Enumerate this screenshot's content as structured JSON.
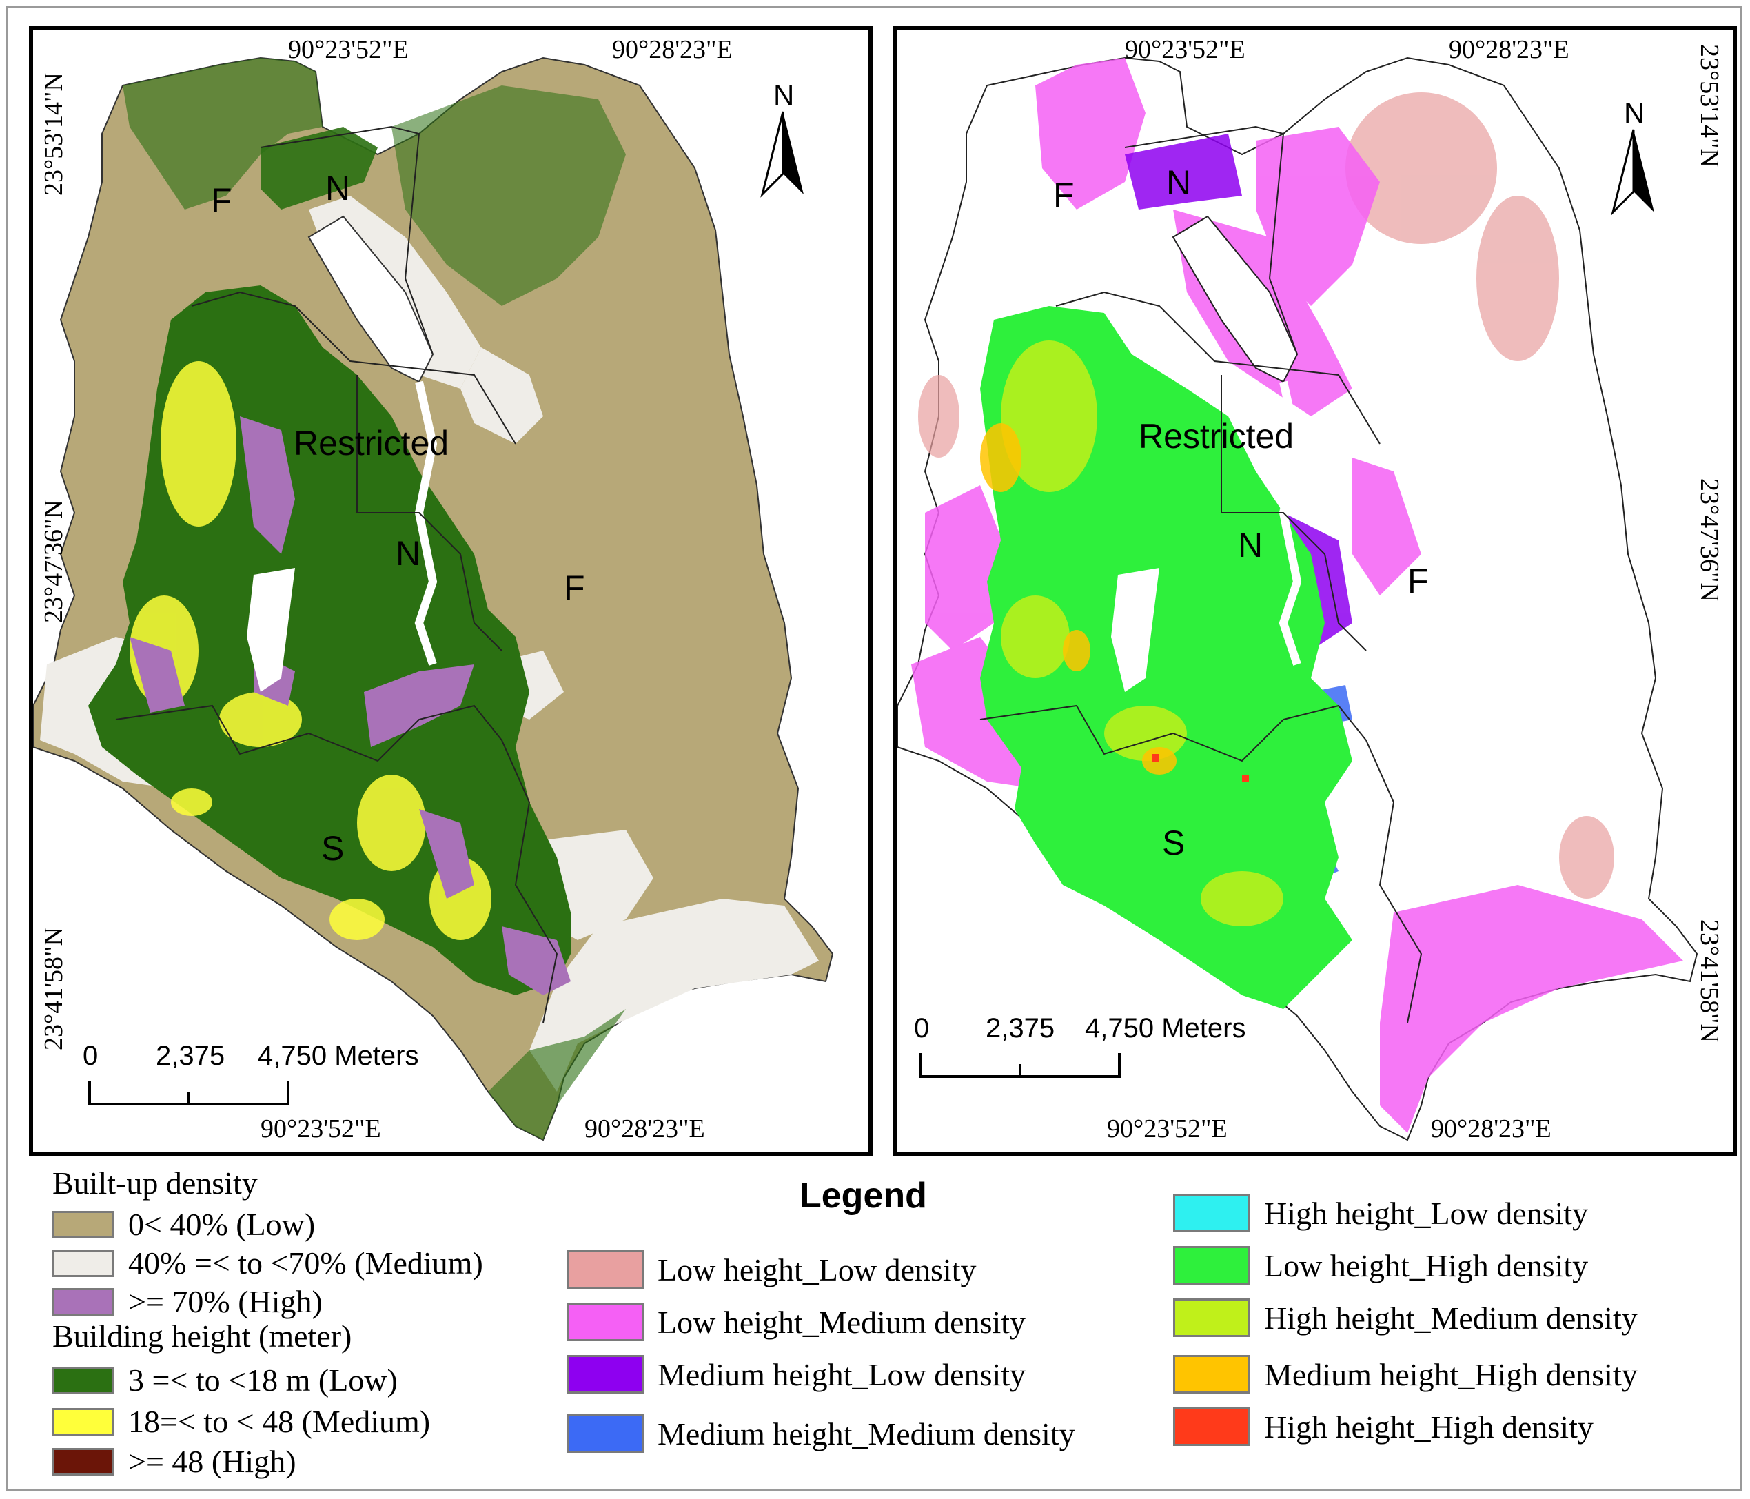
{
  "colors": {
    "low_density": "#b7a878",
    "medium_density": "#efede8",
    "high_density": "#a972b8",
    "height_low": "#2b7012",
    "height_medium": "#ffff3a",
    "height_high": "#6b1508",
    "lh_ld": "#e8a0a0",
    "lh_md": "#f560f5",
    "mh_ld": "#8e00f0",
    "mh_md": "#3c6af5",
    "hh_ld": "#2ef0f0",
    "lh_hd": "#2ef03c",
    "hh_md": "#c0f01a",
    "mh_hd": "#ffc400",
    "hh_hd": "#ff3a1a"
  },
  "left_map": {
    "top_lon_1": "90°23'52\"E",
    "top_lon_2": "90°28'23\"E",
    "bottom_lon_1": "90°23'52\"E",
    "bottom_lon_2": "90°28'23\"E",
    "lat_1": "23°53'14\"N",
    "lat_2": "23°47'36\"N",
    "lat_3": "23°41'58\"N",
    "labels": {
      "f1": "F",
      "n1": "N",
      "restricted": "Restricted",
      "n2": "N",
      "f2": "F",
      "s": "S"
    },
    "north_arrow": "N",
    "scale": {
      "t0": "0",
      "t1": "2,375",
      "t2": "4,750 Meters"
    }
  },
  "right_map": {
    "top_lon_1": "90°23'52\"E",
    "top_lon_2": "90°28'23\"E",
    "bottom_lon_1": "90°23'52\"E",
    "bottom_lon_2": "90°28'23\"E",
    "lat_1": "23°53'14\"N",
    "lat_2": "23°47'36\"N",
    "lat_3": "23°41'58\"N",
    "labels": {
      "f1": "F",
      "n1": "N",
      "restricted": "Restricted",
      "n2": "N",
      "f2": "F",
      "s": "S"
    },
    "north_arrow": "N",
    "scale": {
      "t0": "0",
      "t1": "2,375",
      "t2": "4,750 Meters"
    }
  },
  "legend": {
    "title": "Legend",
    "builtup_heading": "Built-up density",
    "builtup_items": [
      "0< 40% (Low)",
      "40% =< to <70% (Medium)",
      ">= 70% (High)"
    ],
    "height_heading": "Building height (meter)",
    "height_items": [
      "3 =< to <18 m (Low)",
      "18=< to < 48 (Medium)",
      ">= 48 (High)"
    ],
    "combo_col1": [
      "Low height_Low density",
      "Low height_Medium density",
      "Medium height_Low density",
      "Medium height_Medium density"
    ],
    "combo_col2": [
      "High height_Low density",
      "Low height_High density",
      "High height_Medium density",
      "Medium height_High density",
      "High height_High density"
    ]
  }
}
